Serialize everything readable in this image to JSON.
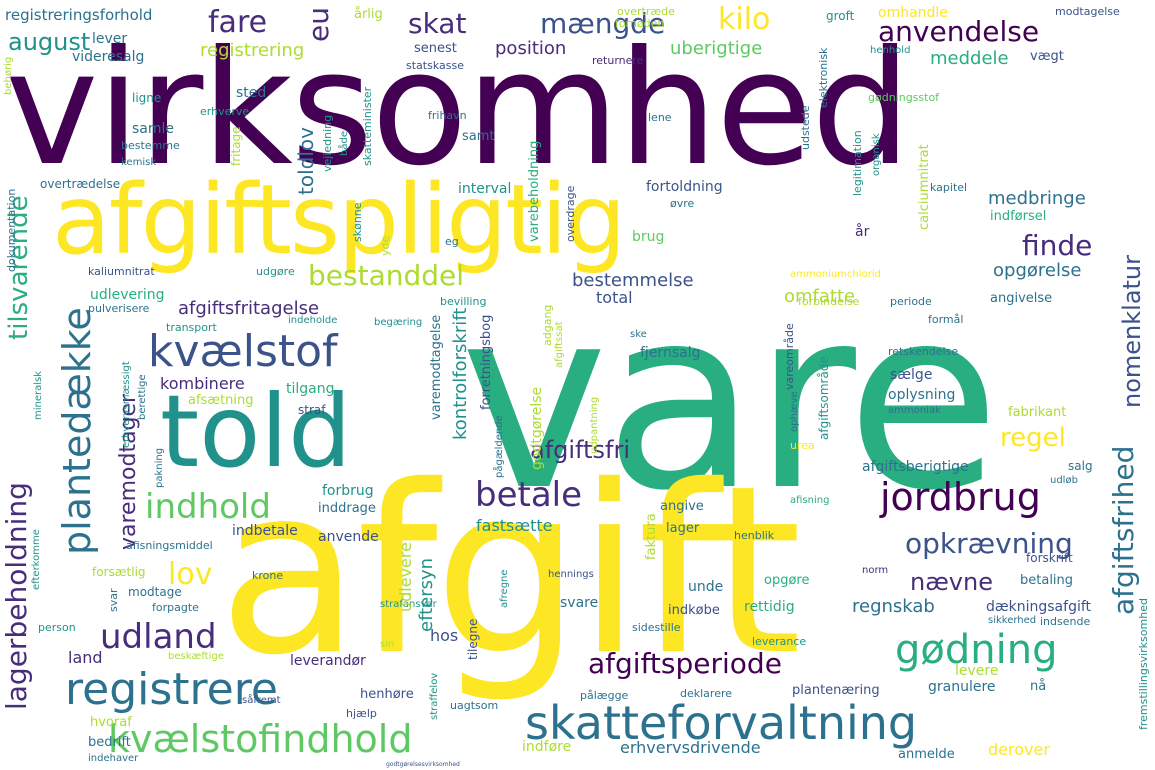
{
  "words": {
    "virksomhed": "virksomhed",
    "vare": "vare",
    "afgift": "afgift",
    "afgiftspligtig": "afgiftspligtig",
    "told": "told",
    "skatteforvaltning": "skatteforvaltning",
    "registrere": "registrere",
    "kvaelstofindhold": "kvælstofindhold",
    "plantedaekke": "plantedække",
    "kvaelstof": "kvælstof",
    "goedning": "gødning",
    "jordbrug": "jordbrug",
    "lagerbeholdning": "lagerbeholdning",
    "afgiftsperiode": "afgiftsperiode",
    "indhold": "indhold",
    "betale": "betale",
    "udland": "udland",
    "opkraevning": "opkrævning",
    "bestanddel": "bestanddel",
    "afgiftsfrihed": "afgiftsfrihed",
    "kilo": "kilo",
    "anvendelse": "anvendelse",
    "maengde": "mængde",
    "fare": "fare",
    "skat": "skat",
    "august": "august",
    "eu": "eu",
    "tilsvarende": "tilsvarende",
    "nomenklatur": "nomenklatur",
    "finde": "finde",
    "regel": "regel",
    "lov": "lov",
    "naevne": "nævne",
    "afgiftsfri": "afgiftsfri",
    "varemodtager": "varemodtager",
    "registrering": "registrering",
    "position": "position",
    "uberigtige": "uberigtige",
    "meddele": "meddele",
    "lever": "lever",
    "videresalg": "videresalg",
    "senest": "senest",
    "statskasse": "statskasse",
    "registreringsforhold": "registreringsforhold",
    "aarlig": "årlig",
    "overtraede": "overtræde",
    "fornoeden": "fornøden",
    "returnere": "returnere",
    "groft": "groft",
    "omhandle": "omhandle",
    "modtagelse": "modtagelse",
    "henhold": "henhold",
    "vaegt": "vægt",
    "sted": "sted",
    "ligne": "ligne",
    "erhverve": "erhverve",
    "samle": "samle",
    "bestemme": "bestemme",
    "kemisk": "kemisk",
    "overtraedelse": "overtrædelse",
    "fritage": "fritage",
    "toldlov": "toldlov",
    "vejledning": "vejledning",
    "baade": "både",
    "skatteminister": "skatteminister",
    "frihavn": "frihavn",
    "samt": "samt",
    "lene": "lene",
    "legitimation": "legitimation",
    "organisk": "organisk",
    "goedningsstof": "gødningsstof",
    "elektronisk": "elektronisk",
    "udstede": "udstede",
    "calciumnitrat": "calciumnitrat",
    "interval": "interval",
    "varebeholdning": "varebeholdning",
    "fortoldning": "fortoldning",
    "kapitel": "kapitel",
    "oevre": "øvre",
    "medbringe": "medbringe",
    "indfoersel": "indførsel",
    "aar": "år",
    "dokumentation": "dokumentation",
    "skoenne": "skønne",
    "yde": "yde",
    "eg": "eg",
    "kaliumnitrat": "kaliumnitrat",
    "udgoere": "udgøre",
    "brug": "brug",
    "overdrage": "overdrage",
    "ammoniumchlorid": "ammoniumchlorid",
    "opgoerelse": "opgørelse",
    "bestemmelse": "bestemmelse",
    "total": "total",
    "omfatte": "omfatte",
    "afgiftsfritagelse": "afgiftsfritagelse",
    "udlevering": "udlevering",
    "pulverisere": "pulverisere",
    "bevilling": "bevilling",
    "forbindelse": "forbindelse",
    "periode": "periode",
    "angivelse": "angivelse",
    "formaal": "formål",
    "transport": "transport",
    "indeholde": "indeholde",
    "begaering": "begæring",
    "adgang": "adgang",
    "afgiftssat": "afgiftssat",
    "ske": "ske",
    "afgiftsomraade": "afgiftsområde",
    "vareomraade": "vareområde",
    "retskendelse": "retskendelse",
    "kontrolforskrift": "kontrolforskrift",
    "forretningsbog": "forretningsbog",
    "fjernsalg": "fjernsalg",
    "saelge": "sælge",
    "oplysning": "oplysning",
    "ophaeve": "ophæve",
    "ammoniak": "ammoniak",
    "fabrikant": "fabrikant",
    "kombinere": "kombinere",
    "tilgang": "tilgang",
    "afsaetning": "afsætning",
    "varemodtagelse": "varemodtagelse",
    "godtgoerelse": "godtgørelse",
    "straf": "straf",
    "mineralsk": "mineralsk",
    "erhvervsmaessigt": "erhvervsmæssigt",
    "berettige": "berettige",
    "pakning": "pakning",
    "paagaeldende": "pågældende",
    "udpantning": "udpantning",
    "urea": "urea",
    "afgiftsberigtige": "afgiftsberigtige",
    "salg": "salg",
    "udloeb": "udløb",
    "forbrug": "forbrug",
    "inddrage": "inddrage",
    "angive": "angive",
    "afisning": "afisning",
    "fremstillingsvirksomhed": "fremstillingsvirksomhed",
    "efterkomme": "efterkomme",
    "afisningsmiddel": "afisningsmiddel",
    "indbetale": "indbetale",
    "anvende": "anvende",
    "fastsaette": "fastsætte",
    "faktura": "faktura",
    "lager": "lager",
    "henblik": "henblik",
    "norm": "norm",
    "forskrift": "forskrift",
    "forsaetlig": "forsætlig",
    "krone": "krone",
    "hennings": "hennings",
    "unde": "unde",
    "betaling": "betaling",
    "svar": "svar",
    "modtage": "modtage",
    "forpagte": "forpagte",
    "afregne": "afregne",
    "straffelov": "straffelov",
    "strafansvar": "strafansvar",
    "udlevere": "udlevere",
    "eftersyn": "eftersyn",
    "svare": "svare",
    "indkoebe": "indkøbe",
    "opgoere": "opgøre",
    "rettidig": "rettidig",
    "regnskab": "regnskab",
    "daekningsafgift": "dækningsafgift",
    "sikkerhed": "sikkerhed",
    "indsende": "indsende",
    "person": "person",
    "land": "land",
    "beskaeftige": "beskæftige",
    "hos": "hos",
    "tilegne": "tilegne",
    "sidestille": "sidestille",
    "leverance": "leverance",
    "leverandoer": "leverandør",
    "henhoere": "henhøre",
    "paalaegge": "pålægge",
    "deklarere": "deklarere",
    "plantenaering": "plantenæring",
    "levere": "levere",
    "granulere": "granulere",
    "naa": "nå",
    "saafremt": "såfremt",
    "hjaelp": "hjælp",
    "uagtsom": "uagtsom",
    "hvoraf": "hvoraf",
    "bedrift": "bedrift",
    "indehaver": "indehaver",
    "indfoere": "indføre",
    "erhvervsdrivende": "erhvervsdrivende",
    "anmelde": "anmelde",
    "derover": "derover",
    "sin": "sin",
    "behoerig": "behørig",
    "godtgoerelsesvirksomhed": "godtgørelsesvirksomhed"
  }
}
